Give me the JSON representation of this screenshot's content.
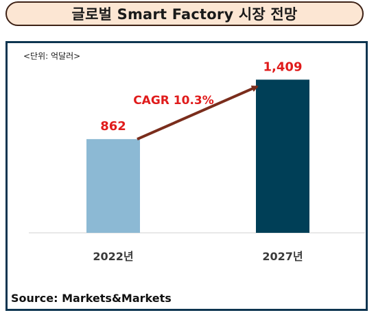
{
  "header": {
    "title": "글로벌 Smart Factory 시장 전망"
  },
  "footer": {
    "source": "Source: Markets&Markets"
  },
  "colors": {
    "bar_2022": "#8cb9d4",
    "bar_2027": "#003f57",
    "value_label": "#e01b1b",
    "arrow": "#7a2d1c",
    "frame_border": "#0d3550",
    "title_bg": "#fce6d3"
  },
  "chart_data": {
    "type": "bar",
    "title": "글로벌 Smart Factory 시장 전망",
    "unit": "<단위: 억달러>",
    "categories": [
      "2022년",
      "2027년"
    ],
    "values": [
      862,
      1409
    ],
    "annotation": "CAGR 10.3%",
    "ylim": [
      0,
      1600
    ],
    "grid": false,
    "legend": "none"
  }
}
